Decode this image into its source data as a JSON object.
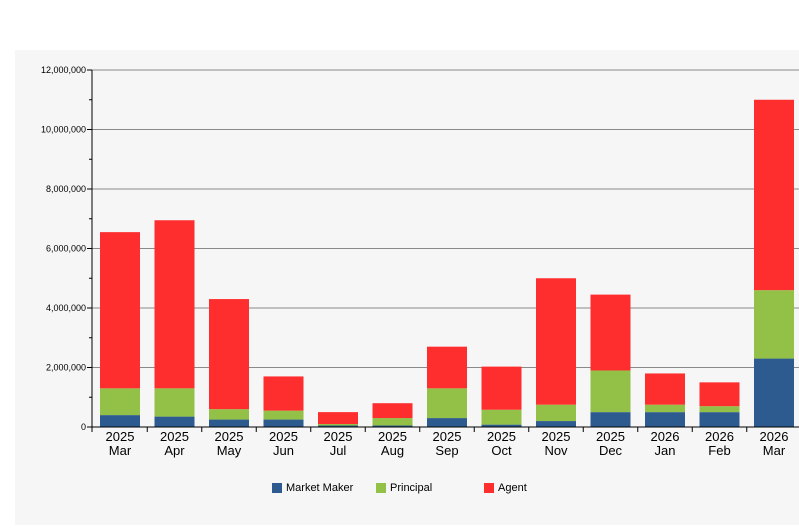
{
  "chart_data": {
    "type": "bar",
    "stacked": true,
    "title": "",
    "xlabel": "",
    "ylabel": "",
    "ylim": [
      0,
      12000000
    ],
    "yticks": [
      "0",
      "2,000,000",
      "4,000,000",
      "6,000,000",
      "8,000,000",
      "10,000,000",
      "12,000,000"
    ],
    "ytick_values": [
      0,
      2000000,
      4000000,
      6000000,
      8000000,
      10000000,
      12000000
    ],
    "grid": true,
    "legend_position": "bottom",
    "categories": [
      {
        "year": "2025",
        "month": "Mar"
      },
      {
        "year": "2025",
        "month": "Apr"
      },
      {
        "year": "2025",
        "month": "May"
      },
      {
        "year": "2025",
        "month": "Jun"
      },
      {
        "year": "2025",
        "month": "Jul"
      },
      {
        "year": "2025",
        "month": "Aug"
      },
      {
        "year": "2025",
        "month": "Sep"
      },
      {
        "year": "2025",
        "month": "Oct"
      },
      {
        "year": "2025",
        "month": "Nov"
      },
      {
        "year": "2025",
        "month": "Dec"
      },
      {
        "year": "2026",
        "month": "Jan"
      },
      {
        "year": "2026",
        "month": "Feb"
      },
      {
        "year": "2026",
        "month": "Mar"
      }
    ],
    "series": [
      {
        "name": "Market Maker",
        "color": "#2e5b8f",
        "values": [
          400000,
          350000,
          250000,
          250000,
          50000,
          50000,
          300000,
          80000,
          200000,
          500000,
          500000,
          500000,
          2300000
        ]
      },
      {
        "name": "Principal",
        "color": "#93c047",
        "values": [
          900000,
          950000,
          350000,
          300000,
          50000,
          250000,
          1000000,
          500000,
          550000,
          1400000,
          250000,
          200000,
          2300000
        ]
      },
      {
        "name": "Agent",
        "color": "#ff2e2e",
        "values": [
          5250000,
          5650000,
          3700000,
          1150000,
          400000,
          500000,
          1400000,
          1450000,
          4250000,
          2550000,
          1050000,
          800000,
          6400000
        ]
      }
    ]
  }
}
